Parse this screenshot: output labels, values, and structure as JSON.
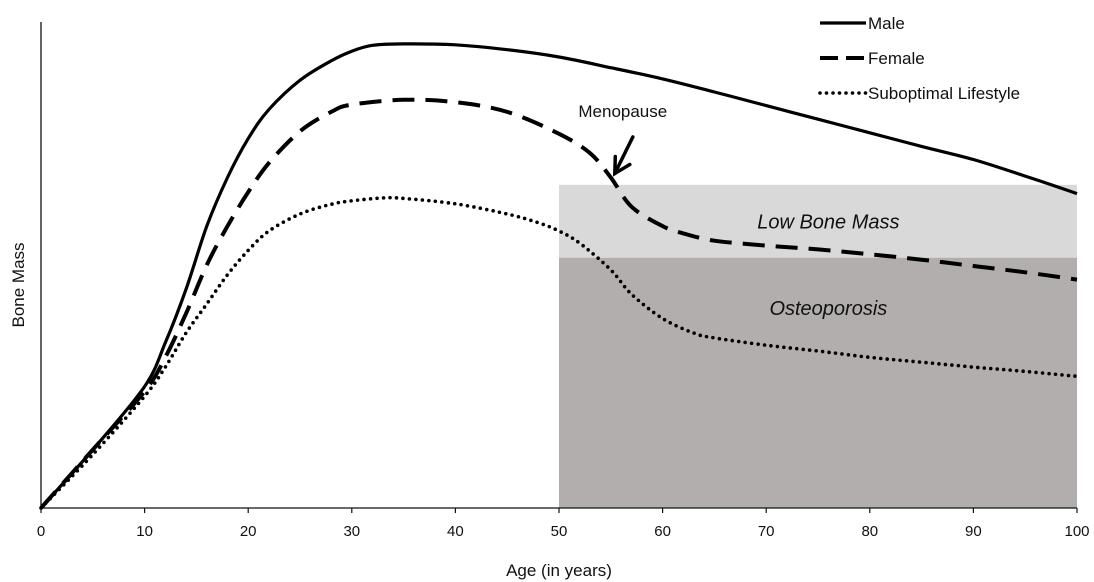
{
  "chart_data": {
    "type": "line",
    "xlabel": "Age (in years)",
    "ylabel": "Bone Mass",
    "xlim": [
      0,
      100
    ],
    "ylim": [
      0,
      100
    ],
    "xticks": [
      "0",
      "10",
      "20",
      "30",
      "40",
      "50",
      "60",
      "70",
      "80",
      "90",
      "100"
    ],
    "grid": false,
    "legend_position": "top-right",
    "series": [
      {
        "name": "Male",
        "style": "solid",
        "color": "#000000",
        "points": [
          [
            0,
            0
          ],
          [
            5,
            12
          ],
          [
            10,
            25
          ],
          [
            12,
            34
          ],
          [
            14,
            45
          ],
          [
            16,
            58
          ],
          [
            18,
            68
          ],
          [
            20,
            76
          ],
          [
            22,
            82
          ],
          [
            25,
            88
          ],
          [
            28,
            92
          ],
          [
            30,
            94
          ],
          [
            32,
            95.2
          ],
          [
            35,
            95.5
          ],
          [
            40,
            95.3
          ],
          [
            45,
            94.3
          ],
          [
            50,
            92.8
          ],
          [
            55,
            90.6
          ],
          [
            60,
            88.3
          ],
          [
            65,
            85.6
          ],
          [
            70,
            82.8
          ],
          [
            75,
            80
          ],
          [
            80,
            77.2
          ],
          [
            85,
            74.4
          ],
          [
            90,
            71.7
          ],
          [
            95,
            68.3
          ],
          [
            100,
            64.7
          ]
        ]
      },
      {
        "name": "Female",
        "style": "dashed",
        "color": "#000000",
        "points": [
          [
            0,
            0
          ],
          [
            5,
            12
          ],
          [
            10,
            24
          ],
          [
            12,
            31
          ],
          [
            14,
            40
          ],
          [
            16,
            50
          ],
          [
            18,
            58
          ],
          [
            20,
            65
          ],
          [
            22,
            71
          ],
          [
            25,
            77.5
          ],
          [
            28,
            81.5
          ],
          [
            30,
            83
          ],
          [
            35,
            84
          ],
          [
            40,
            83.5
          ],
          [
            45,
            81.5
          ],
          [
            50,
            77
          ],
          [
            53,
            73
          ],
          [
            55,
            68
          ],
          [
            57,
            62
          ],
          [
            60,
            58
          ],
          [
            62,
            56.5
          ],
          [
            65,
            55
          ],
          [
            70,
            54
          ],
          [
            75,
            53.2
          ],
          [
            80,
            52.2
          ],
          [
            85,
            51.1
          ],
          [
            90,
            49.8
          ],
          [
            95,
            48.5
          ],
          [
            100,
            47
          ]
        ]
      },
      {
        "name": "Suboptimal Lifestyle",
        "style": "dotted",
        "color": "#000000",
        "points": [
          [
            0,
            0
          ],
          [
            5,
            11
          ],
          [
            10,
            23
          ],
          [
            12,
            29
          ],
          [
            14,
            36
          ],
          [
            16,
            42
          ],
          [
            18,
            48
          ],
          [
            20,
            53
          ],
          [
            22,
            57
          ],
          [
            25,
            60.5
          ],
          [
            28,
            62.5
          ],
          [
            30,
            63.2
          ],
          [
            33,
            63.8
          ],
          [
            35,
            63.7
          ],
          [
            40,
            62.6
          ],
          [
            45,
            60.5
          ],
          [
            48,
            58.7
          ],
          [
            50,
            57
          ],
          [
            52,
            54.5
          ],
          [
            55,
            49
          ],
          [
            57,
            44
          ],
          [
            60,
            39
          ],
          [
            63,
            36
          ],
          [
            65,
            35
          ],
          [
            70,
            33.5
          ],
          [
            75,
            32.3
          ],
          [
            80,
            31
          ],
          [
            85,
            30
          ],
          [
            90,
            29
          ],
          [
            95,
            28.1
          ],
          [
            100,
            27.1
          ]
        ]
      }
    ],
    "regions": [
      {
        "label": "Low Bone Mass",
        "x": [
          50,
          100
        ],
        "y": [
          51.5,
          66.5
        ],
        "color": "#d9d9d9"
      },
      {
        "label": "Osteoporosis",
        "x": [
          50,
          100
        ],
        "y": [
          0,
          51.5
        ],
        "color": "#b3aeae"
      }
    ],
    "annotations": [
      {
        "text": "Menopause",
        "x": 55,
        "y": 68
      }
    ]
  }
}
